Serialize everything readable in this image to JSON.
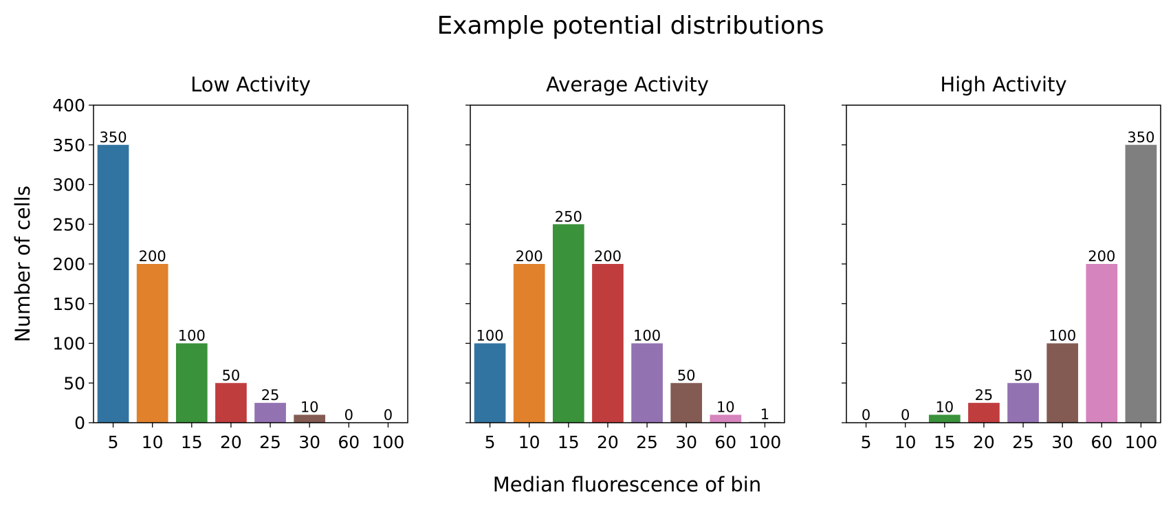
{
  "figure": {
    "suptitle": "Example potential distributions",
    "xlabel": "Median fluorescence of bin",
    "ylabel": "Number of cells"
  },
  "chart_data": [
    {
      "type": "bar",
      "title": "Low Activity",
      "categories": [
        "5",
        "10",
        "15",
        "20",
        "25",
        "30",
        "60",
        "100"
      ],
      "values": [
        350,
        200,
        100,
        50,
        25,
        10,
        0,
        0
      ],
      "ylim": [
        0,
        400
      ],
      "yticks": [
        0,
        50,
        100,
        150,
        200,
        250,
        300,
        350,
        400
      ],
      "ytick_labels_visible": true,
      "grid": false
    },
    {
      "type": "bar",
      "title": "Average Activity",
      "categories": [
        "5",
        "10",
        "15",
        "20",
        "25",
        "30",
        "60",
        "100"
      ],
      "values": [
        100,
        200,
        250,
        200,
        100,
        50,
        10,
        1
      ],
      "ylim": [
        0,
        400
      ],
      "yticks": [
        0,
        50,
        100,
        150,
        200,
        250,
        300,
        350,
        400
      ],
      "ytick_labels_visible": false,
      "grid": false
    },
    {
      "type": "bar",
      "title": "High Activity",
      "categories": [
        "5",
        "10",
        "15",
        "20",
        "25",
        "30",
        "60",
        "100"
      ],
      "values": [
        0,
        0,
        10,
        25,
        50,
        100,
        200,
        350
      ],
      "ylim": [
        0,
        400
      ],
      "yticks": [
        0,
        50,
        100,
        150,
        200,
        250,
        300,
        350,
        400
      ],
      "ytick_labels_visible": false,
      "grid": false
    }
  ],
  "colors": [
    "#3274a1",
    "#e1812c",
    "#3a923a",
    "#c03d3e",
    "#9372b2",
    "#845b53",
    "#d684bd",
    "#7f7f7f"
  ]
}
